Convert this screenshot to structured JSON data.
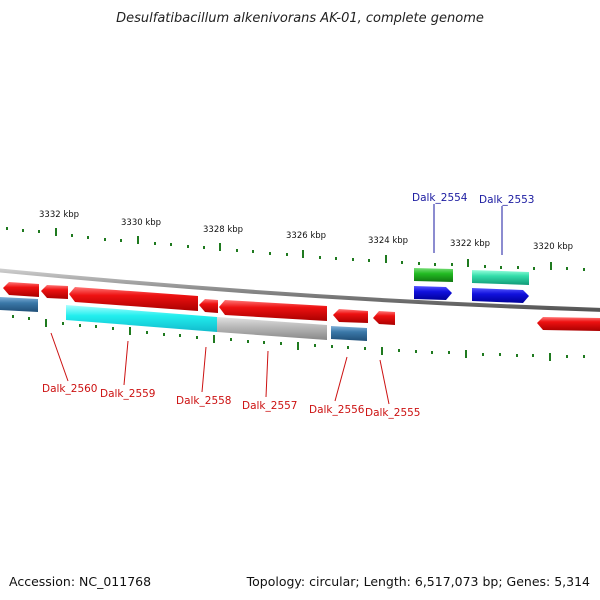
{
  "title": "Desulfatibacillum alkenivorans AK-01, complete genome",
  "footer": {
    "accession": "Accession: NC_011768",
    "summary": "Topology: circular; Length: 6,517,073 bp; Genes: 5,314"
  },
  "colors": {
    "backbone": "#8a8a8a",
    "tick": "#1f7a1f",
    "label_plus": "#1a1aa0",
    "label_minus": "#cc1111",
    "red_gene": "#ee1111",
    "blue_gene": "#1111dd",
    "green_gene": "#22bb22",
    "teal_gene": "#33ddaa",
    "cyan_gene": "#22eeee",
    "gray_gene": "#bbbbbb",
    "steel_gene": "#3a78a8"
  },
  "scale_labels": [
    "3332 kbp",
    "3330 kbp",
    "3328 kbp",
    "3326 kbp",
    "3324 kbp",
    "3322 kbp",
    "3320 kbp"
  ],
  "gene_labels_top": [
    "Dalk_2554",
    "Dalk_2553"
  ],
  "gene_labels_bottom": [
    "Dalk_2560",
    "Dalk_2559",
    "Dalk_2558",
    "Dalk_2557",
    "Dalk_2556",
    "Dalk_2555"
  ]
}
